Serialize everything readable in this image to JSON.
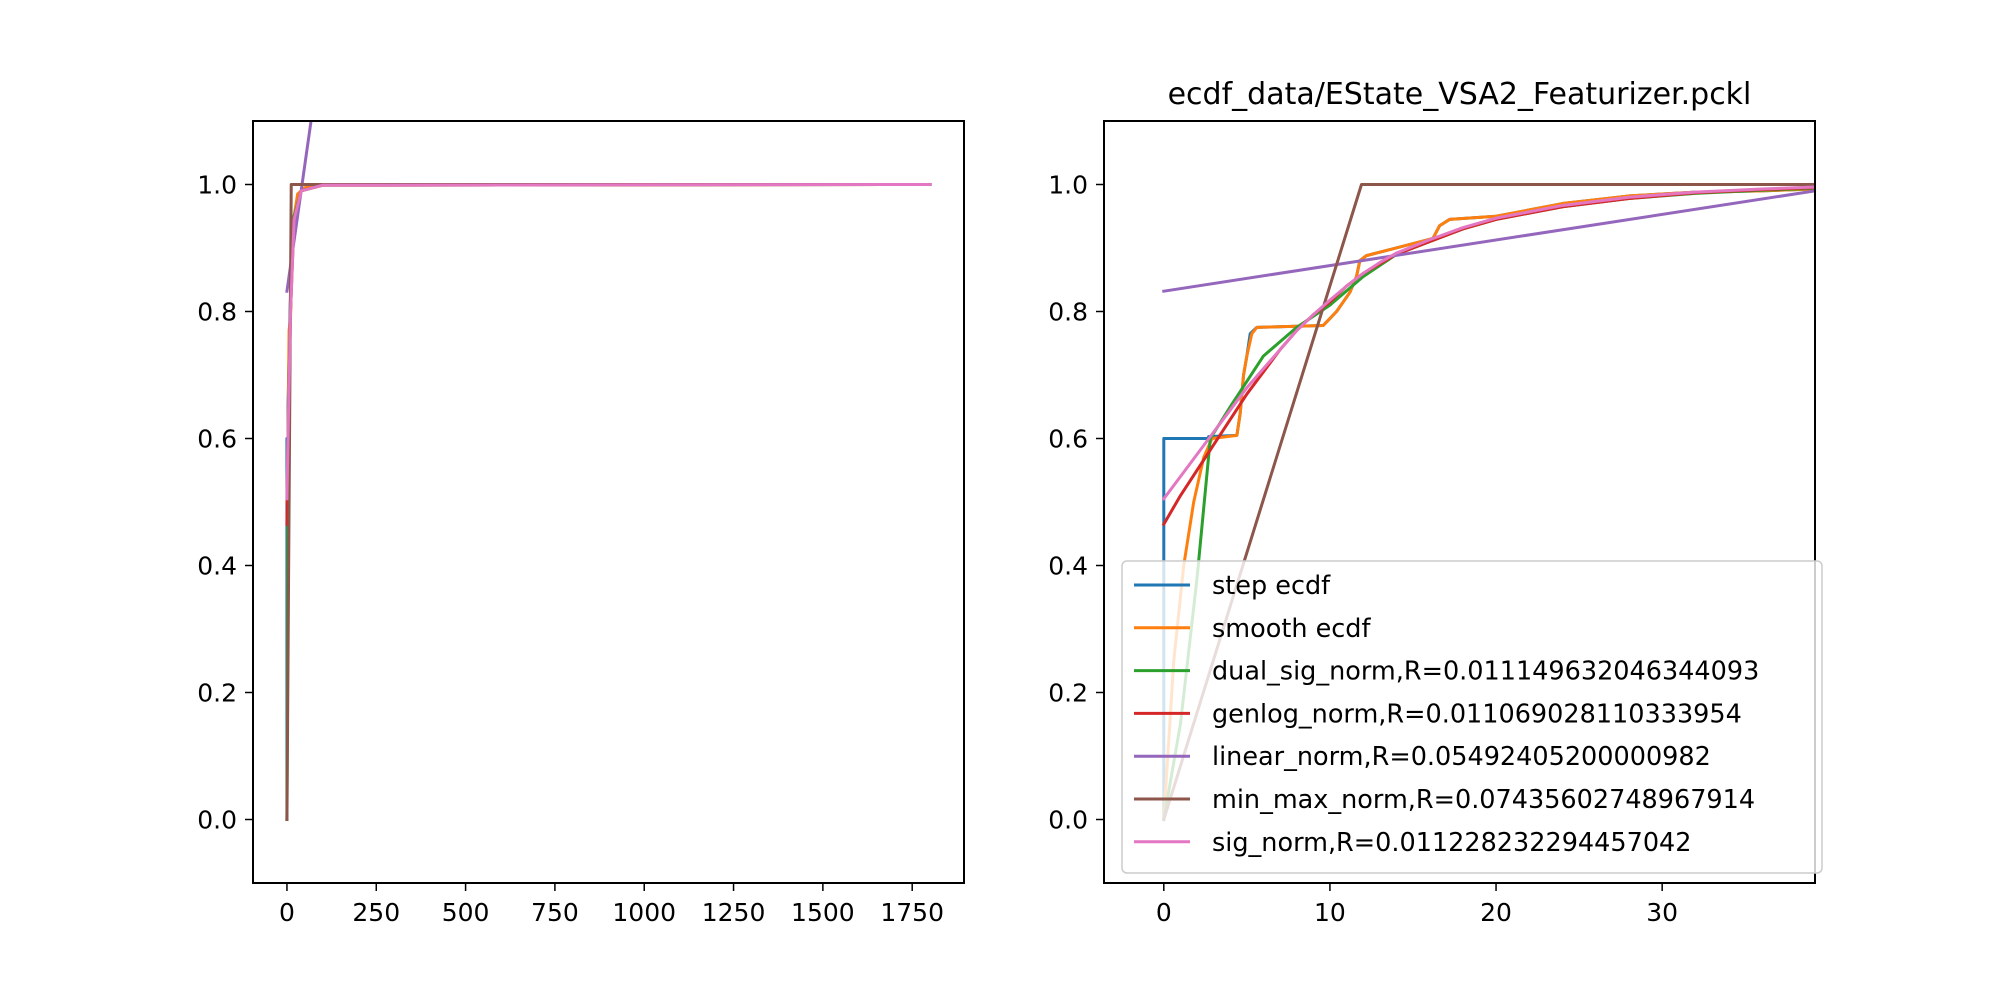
{
  "chart_data": [
    {
      "type": "line",
      "title": "",
      "xlabel": "",
      "ylabel": "",
      "xlim": [
        -95,
        1895
      ],
      "ylim": [
        -0.1,
        1.1
      ],
      "xticks": [
        0,
        250,
        500,
        750,
        1000,
        1250,
        1500,
        1750
      ],
      "yticks": [
        0.0,
        0.2,
        0.4,
        0.6,
        0.8,
        1.0
      ],
      "xtick_labels": [
        "0",
        "250",
        "500",
        "750",
        "1000",
        "1250",
        "1500",
        "1750"
      ],
      "ytick_labels": [
        "0.0",
        "0.2",
        "0.4",
        "0.6",
        "0.8",
        "1.0"
      ],
      "grid": false,
      "legend": null,
      "series": [
        {
          "color": "#1f77b4",
          "points": [
            [
              0,
              0.0
            ],
            [
              0,
              0.6
            ],
            [
              3,
              0.6
            ],
            [
              3,
              0.65
            ],
            [
              10,
              0.83
            ],
            [
              12,
              0.86
            ],
            [
              20,
              0.95
            ],
            [
              40,
              0.99
            ],
            [
              80,
              1.0
            ],
            [
              1800,
              1.0
            ]
          ]
        },
        {
          "color": "#ff7f0e",
          "points": [
            [
              0,
              0.5
            ],
            [
              3,
              0.6
            ],
            [
              6,
              0.77
            ],
            [
              10,
              0.79
            ],
            [
              15,
              0.9
            ],
            [
              20,
              0.95
            ],
            [
              30,
              0.985
            ],
            [
              50,
              0.995
            ],
            [
              100,
              0.999
            ],
            [
              1800,
              1.0
            ]
          ]
        },
        {
          "color": "#2ca02c",
          "points": [
            [
              0,
              0.0
            ],
            [
              2,
              0.3
            ],
            [
              3,
              0.6
            ],
            [
              10,
              0.82
            ],
            [
              20,
              0.95
            ],
            [
              40,
              0.99
            ],
            [
              100,
              0.999
            ],
            [
              1800,
              1.0
            ]
          ]
        },
        {
          "color": "#d62728",
          "points": [
            [
              0,
              0.465
            ],
            [
              3,
              0.58
            ],
            [
              10,
              0.8
            ],
            [
              20,
              0.945
            ],
            [
              40,
              0.99
            ],
            [
              100,
              0.999
            ],
            [
              1800,
              1.0
            ]
          ]
        },
        {
          "color": "#9467bd",
          "points": [
            [
              0,
              0.832
            ],
            [
              80,
              1.15
            ]
          ]
        },
        {
          "color": "#8c564b",
          "points": [
            [
              0,
              0.0
            ],
            [
              12,
              1.0
            ],
            [
              1800,
              1.0
            ]
          ]
        },
        {
          "color": "#e377c2",
          "points": [
            [
              0,
              0.505
            ],
            [
              3,
              0.6
            ],
            [
              10,
              0.8
            ],
            [
              20,
              0.945
            ],
            [
              40,
              0.99
            ],
            [
              100,
              0.999
            ],
            [
              1800,
              1.0
            ]
          ]
        }
      ]
    },
    {
      "type": "line",
      "title": "ecdf_data/EState_VSA2_Featurizer.pckl",
      "xlabel": "",
      "ylabel": "",
      "xlim": [
        -3.6,
        39.2
      ],
      "ylim": [
        -0.1,
        1.1
      ],
      "xticks": [
        0,
        10,
        20,
        30
      ],
      "yticks": [
        0.0,
        0.2,
        0.4,
        0.6,
        0.8,
        1.0
      ],
      "xtick_labels": [
        "0",
        "10",
        "20",
        "30"
      ],
      "ytick_labels": [
        "0.0",
        "0.2",
        "0.4",
        "0.6",
        "0.8",
        "1.0"
      ],
      "grid": false,
      "legend": "lower right",
      "series": [
        {
          "name": "step ecdf",
          "color": "#1f77b4",
          "points": [
            [
              0,
              0.0
            ],
            [
              0,
              0.6
            ],
            [
              2.7,
              0.6
            ],
            [
              2.7,
              0.603
            ],
            [
              4.4,
              0.605
            ],
            [
              4.6,
              0.64
            ],
            [
              4.8,
              0.7
            ],
            [
              5.0,
              0.73
            ],
            [
              5.2,
              0.765
            ],
            [
              5.6,
              0.775
            ],
            [
              9.6,
              0.778
            ],
            [
              10.4,
              0.8
            ],
            [
              11.2,
              0.83
            ],
            [
              11.6,
              0.855
            ],
            [
              11.8,
              0.88
            ],
            [
              12.2,
              0.888
            ],
            [
              16.2,
              0.915
            ],
            [
              16.6,
              0.935
            ],
            [
              17.2,
              0.945
            ],
            [
              20,
              0.95
            ],
            [
              24,
              0.97
            ],
            [
              28,
              0.982
            ],
            [
              32,
              0.988
            ],
            [
              36,
              0.99
            ],
            [
              39.2,
              0.993
            ]
          ]
        },
        {
          "name": "smooth ecdf",
          "color": "#ff7f0e",
          "points": [
            [
              0,
              0.0
            ],
            [
              0.6,
              0.25
            ],
            [
              1.2,
              0.4
            ],
            [
              1.8,
              0.5
            ],
            [
              2.4,
              0.57
            ],
            [
              2.9,
              0.6
            ],
            [
              4.4,
              0.605
            ],
            [
              4.6,
              0.64
            ],
            [
              4.8,
              0.7
            ],
            [
              5.0,
              0.73
            ],
            [
              5.3,
              0.765
            ],
            [
              5.6,
              0.775
            ],
            [
              9.6,
              0.778
            ],
            [
              10.4,
              0.8
            ],
            [
              11.2,
              0.83
            ],
            [
              11.6,
              0.855
            ],
            [
              11.8,
              0.88
            ],
            [
              12.2,
              0.888
            ],
            [
              16.2,
              0.915
            ],
            [
              16.6,
              0.935
            ],
            [
              17.2,
              0.945
            ],
            [
              20,
              0.95
            ],
            [
              24,
              0.97
            ],
            [
              28,
              0.982
            ],
            [
              32,
              0.988
            ],
            [
              36,
              0.99
            ],
            [
              39.2,
              0.993
            ]
          ]
        },
        {
          "name": "dual_sig_norm,R=0.011149632046344093",
          "color": "#2ca02c",
          "points": [
            [
              0,
              0.0
            ],
            [
              1.0,
              0.15
            ],
            [
              2.0,
              0.38
            ],
            [
              2.8,
              0.6
            ],
            [
              4,
              0.65
            ],
            [
              6,
              0.73
            ],
            [
              8,
              0.775
            ],
            [
              10,
              0.81
            ],
            [
              12,
              0.855
            ],
            [
              14,
              0.89
            ],
            [
              16,
              0.91
            ],
            [
              18,
              0.93
            ],
            [
              20,
              0.945
            ],
            [
              24,
              0.965
            ],
            [
              28,
              0.978
            ],
            [
              32,
              0.986
            ],
            [
              36,
              0.991
            ],
            [
              39.2,
              0.994
            ]
          ]
        },
        {
          "name": "genlog_norm,R=0.011069028110333954",
          "color": "#d62728",
          "points": [
            [
              0,
              0.465
            ],
            [
              1,
              0.51
            ],
            [
              2,
              0.55
            ],
            [
              3,
              0.59
            ],
            [
              4,
              0.63
            ],
            [
              5,
              0.67
            ],
            [
              6,
              0.705
            ],
            [
              7,
              0.74
            ],
            [
              8,
              0.77
            ],
            [
              9,
              0.795
            ],
            [
              10,
              0.815
            ],
            [
              11,
              0.84
            ],
            [
              12,
              0.86
            ],
            [
              13,
              0.875
            ],
            [
              14,
              0.89
            ],
            [
              16,
              0.91
            ],
            [
              18,
              0.93
            ],
            [
              20,
              0.945
            ],
            [
              24,
              0.965
            ],
            [
              28,
              0.978
            ],
            [
              32,
              0.987
            ],
            [
              36,
              0.992
            ],
            [
              39.2,
              0.995
            ]
          ]
        },
        {
          "name": "linear_norm,R=0.05492405200000982",
          "color": "#9467bd",
          "points": [
            [
              0,
              0.832
            ],
            [
              39.2,
              0.99
            ]
          ]
        },
        {
          "name": "min_max_norm,R=0.07435602748967914",
          "color": "#8c564b",
          "points": [
            [
              0,
              0.0
            ],
            [
              11.9,
              1.0
            ],
            [
              39.2,
              1.0
            ]
          ]
        },
        {
          "name": "sig_norm,R=0.011228232294457042",
          "color": "#e377c2",
          "points": [
            [
              0,
              0.505
            ],
            [
              1,
              0.54
            ],
            [
              2,
              0.575
            ],
            [
              3,
              0.61
            ],
            [
              4,
              0.645
            ],
            [
              5,
              0.68
            ],
            [
              6,
              0.71
            ],
            [
              7,
              0.74
            ],
            [
              8,
              0.77
            ],
            [
              9,
              0.795
            ],
            [
              10,
              0.818
            ],
            [
              11,
              0.84
            ],
            [
              12,
              0.86
            ],
            [
              13,
              0.877
            ],
            [
              14,
              0.892
            ],
            [
              16,
              0.913
            ],
            [
              18,
              0.932
            ],
            [
              20,
              0.947
            ],
            [
              24,
              0.967
            ],
            [
              28,
              0.98
            ],
            [
              32,
              0.988
            ],
            [
              36,
              0.993
            ],
            [
              39.2,
              0.996
            ]
          ]
        }
      ]
    }
  ]
}
